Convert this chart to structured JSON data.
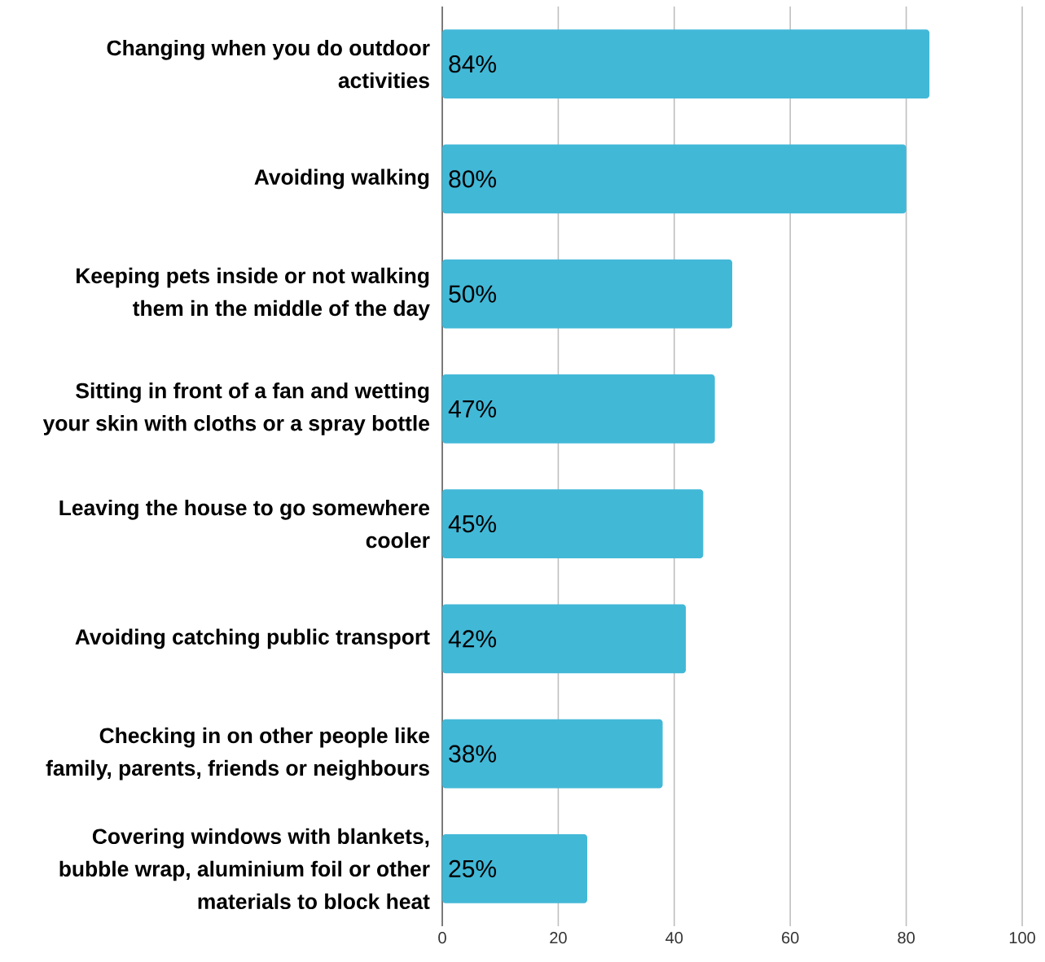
{
  "chart_data": {
    "type": "bar",
    "orientation": "horizontal",
    "categories": [
      "Changing when you do outdoor activities",
      "Avoiding walking",
      "Keeping pets inside or not walking them in the middle of the day",
      "Sitting in front of a fan and wetting your skin with cloths or a spray bottle",
      "Leaving the house to go somewhere cooler",
      "Avoiding catching public transport",
      "Checking in on other people like family, parents, friends or neighbours",
      "Covering windows with blankets, bubble wrap, aluminium foil or other materials to block heat"
    ],
    "values": [
      84,
      80,
      50,
      47,
      45,
      42,
      38,
      25
    ],
    "value_labels": [
      "84%",
      "80%",
      "50%",
      "47%",
      "45%",
      "42%",
      "38%",
      "25%"
    ],
    "color": "#42b8d7",
    "xlim": [
      0,
      100
    ],
    "xticks": [
      0,
      20,
      40,
      60,
      80,
      100
    ],
    "grid": "x"
  }
}
